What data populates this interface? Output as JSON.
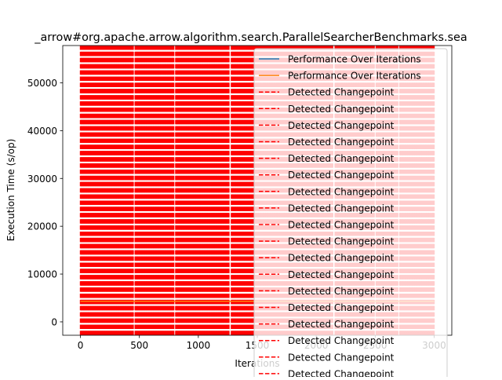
{
  "chart_data": {
    "type": "line",
    "title": "_arrow#org.apache.arrow.algorithm.search.ParallelSearcherBenchmarks.sea",
    "xlabel": "Iterations",
    "ylabel": "Execution Time (s/op)",
    "xlim": [
      -150,
      3150
    ],
    "ylim": [
      -2800,
      57800
    ],
    "xticks": [
      0,
      500,
      1000,
      1500,
      2000,
      2500,
      3000
    ],
    "yticks": [
      0,
      10000,
      20000,
      30000,
      40000,
      50000
    ],
    "grid": false,
    "legend_position": "top-right",
    "series": [
      {
        "name": "Performance Over Iterations",
        "color": "#1f77b4",
        "x": [
          0,
          3000
        ],
        "y": [
          4300,
          4300
        ]
      },
      {
        "name": "Performance Over Iterations",
        "color": "#ff7f0e",
        "x": [
          0,
          3000
        ],
        "y": [
          4300,
          4300
        ]
      }
    ],
    "changepoint_label": "Detected Changepoint",
    "changepoint_color": "#ff0000",
    "changepoint_style": "dashed",
    "changepoint_range": [
      0,
      3000
    ],
    "changepoint_gaps": [
      455,
      800,
      1270,
      2150,
      2500,
      2700
    ],
    "legend_entries": [
      {
        "label": "Performance Over Iterations",
        "color": "#1f77b4",
        "style": "solid"
      },
      {
        "label": "Performance Over Iterations",
        "color": "#ff7f0e",
        "style": "solid"
      },
      {
        "label": "Detected Changepoint",
        "color": "#ff0000",
        "style": "dashed"
      },
      {
        "label": "Detected Changepoint",
        "color": "#ff0000",
        "style": "dashed"
      },
      {
        "label": "Detected Changepoint",
        "color": "#ff0000",
        "style": "dashed"
      },
      {
        "label": "Detected Changepoint",
        "color": "#ff0000",
        "style": "dashed"
      },
      {
        "label": "Detected Changepoint",
        "color": "#ff0000",
        "style": "dashed"
      },
      {
        "label": "Detected Changepoint",
        "color": "#ff0000",
        "style": "dashed"
      },
      {
        "label": "Detected Changepoint",
        "color": "#ff0000",
        "style": "dashed"
      },
      {
        "label": "Detected Changepoint",
        "color": "#ff0000",
        "style": "dashed"
      },
      {
        "label": "Detected Changepoint",
        "color": "#ff0000",
        "style": "dashed"
      },
      {
        "label": "Detected Changepoint",
        "color": "#ff0000",
        "style": "dashed"
      },
      {
        "label": "Detected Changepoint",
        "color": "#ff0000",
        "style": "dashed"
      },
      {
        "label": "Detected Changepoint",
        "color": "#ff0000",
        "style": "dashed"
      },
      {
        "label": "Detected Changepoint",
        "color": "#ff0000",
        "style": "dashed"
      },
      {
        "label": "Detected Changepoint",
        "color": "#ff0000",
        "style": "dashed"
      },
      {
        "label": "Detected Changepoint",
        "color": "#ff0000",
        "style": "dashed"
      },
      {
        "label": "Detected Changepoint",
        "color": "#ff0000",
        "style": "dashed"
      },
      {
        "label": "Detected Changepoint",
        "color": "#ff0000",
        "style": "dashed"
      },
      {
        "label": "Detected Changepoint",
        "color": "#ff0000",
        "style": "dashed"
      }
    ]
  }
}
